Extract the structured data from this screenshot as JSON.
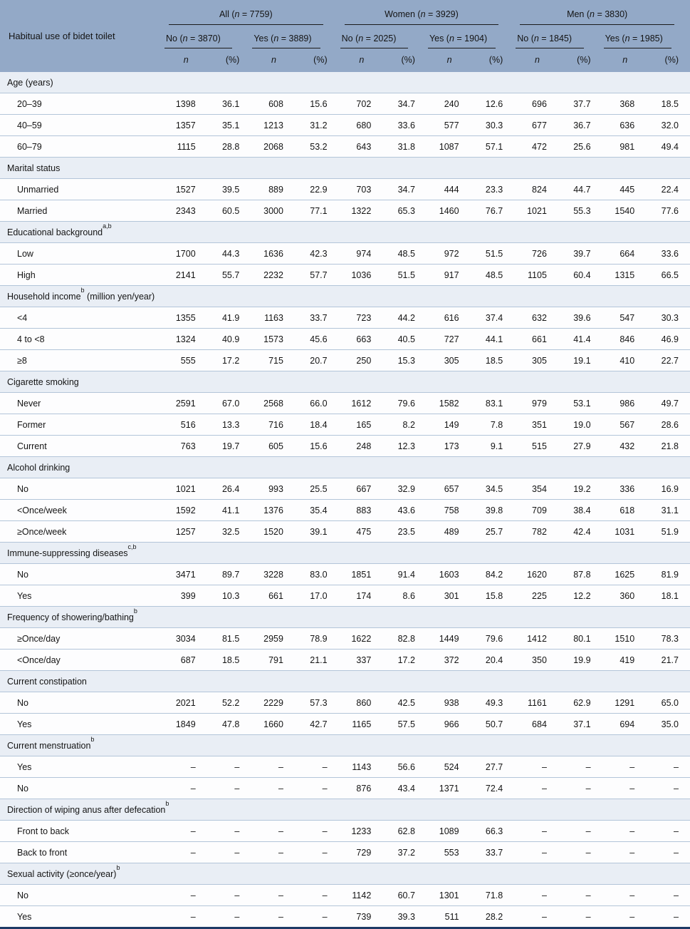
{
  "colors": {
    "header_bg": "#93a9c7",
    "section_bg": "#e9eef5",
    "row_bg": "#fdfdfe",
    "divider": "#b3c5d9",
    "bottom_border": "#1d3a66",
    "text": "#141414"
  },
  "table": {
    "row_header": "Habitual use of bidet toilet",
    "groups": [
      {
        "pre": "All (",
        "n": "n",
        "post": " = 7759)"
      },
      {
        "pre": "Women (",
        "n": "n",
        "post": " = 3929)"
      },
      {
        "pre": "Men (",
        "n": "n",
        "post": " = 3830)"
      }
    ],
    "subgroups": [
      {
        "pre": "No (",
        "n": "n",
        "post": " = 3870)"
      },
      {
        "pre": "Yes (",
        "n": "n",
        "post": " = 3889)"
      },
      {
        "pre": "No (",
        "n": "n",
        "post": " = 2025)"
      },
      {
        "pre": "Yes (",
        "n": "n",
        "post": " = 1904)"
      },
      {
        "pre": "No (",
        "n": "n",
        "post": " = 1845)"
      },
      {
        "pre": "Yes (",
        "n": "n",
        "post": " = 1985)"
      }
    ],
    "stat_cols": {
      "n": "n",
      "pct": "(%)"
    },
    "sections": [
      {
        "label": "Age (years)",
        "sup": "",
        "suffix": "",
        "rows": [
          {
            "label": "20–39",
            "v": [
              "1398",
              "36.1",
              "608",
              "15.6",
              "702",
              "34.7",
              "240",
              "12.6",
              "696",
              "37.7",
              "368",
              "18.5"
            ]
          },
          {
            "label": "40–59",
            "v": [
              "1357",
              "35.1",
              "1213",
              "31.2",
              "680",
              "33.6",
              "577",
              "30.3",
              "677",
              "36.7",
              "636",
              "32.0"
            ]
          },
          {
            "label": "60–79",
            "v": [
              "1115",
              "28.8",
              "2068",
              "53.2",
              "643",
              "31.8",
              "1087",
              "57.1",
              "472",
              "25.6",
              "981",
              "49.4"
            ]
          }
        ]
      },
      {
        "label": "Marital status",
        "sup": "",
        "suffix": "",
        "rows": [
          {
            "label": "Unmarried",
            "v": [
              "1527",
              "39.5",
              "889",
              "22.9",
              "703",
              "34.7",
              "444",
              "23.3",
              "824",
              "44.7",
              "445",
              "22.4"
            ]
          },
          {
            "label": "Married",
            "v": [
              "2343",
              "60.5",
              "3000",
              "77.1",
              "1322",
              "65.3",
              "1460",
              "76.7",
              "1021",
              "55.3",
              "1540",
              "77.6"
            ]
          }
        ]
      },
      {
        "label": "Educational background",
        "sup": "a,b",
        "suffix": "",
        "rows": [
          {
            "label": "Low",
            "v": [
              "1700",
              "44.3",
              "1636",
              "42.3",
              "974",
              "48.5",
              "972",
              "51.5",
              "726",
              "39.7",
              "664",
              "33.6"
            ]
          },
          {
            "label": "High",
            "v": [
              "2141",
              "55.7",
              "2232",
              "57.7",
              "1036",
              "51.5",
              "917",
              "48.5",
              "1105",
              "60.4",
              "1315",
              "66.5"
            ]
          }
        ]
      },
      {
        "label": "Household income",
        "sup": "b",
        "suffix": " (million yen/year)",
        "rows": [
          {
            "label": "<4",
            "v": [
              "1355",
              "41.9",
              "1163",
              "33.7",
              "723",
              "44.2",
              "616",
              "37.4",
              "632",
              "39.6",
              "547",
              "30.3"
            ]
          },
          {
            "label": "4 to <8",
            "v": [
              "1324",
              "40.9",
              "1573",
              "45.6",
              "663",
              "40.5",
              "727",
              "44.1",
              "661",
              "41.4",
              "846",
              "46.9"
            ]
          },
          {
            "label": "≥8",
            "v": [
              "555",
              "17.2",
              "715",
              "20.7",
              "250",
              "15.3",
              "305",
              "18.5",
              "305",
              "19.1",
              "410",
              "22.7"
            ]
          }
        ]
      },
      {
        "label": "Cigarette smoking",
        "sup": "",
        "suffix": "",
        "rows": [
          {
            "label": "Never",
            "v": [
              "2591",
              "67.0",
              "2568",
              "66.0",
              "1612",
              "79.6",
              "1582",
              "83.1",
              "979",
              "53.1",
              "986",
              "49.7"
            ]
          },
          {
            "label": "Former",
            "v": [
              "516",
              "13.3",
              "716",
              "18.4",
              "165",
              "8.2",
              "149",
              "7.8",
              "351",
              "19.0",
              "567",
              "28.6"
            ]
          },
          {
            "label": "Current",
            "v": [
              "763",
              "19.7",
              "605",
              "15.6",
              "248",
              "12.3",
              "173",
              "9.1",
              "515",
              "27.9",
              "432",
              "21.8"
            ]
          }
        ]
      },
      {
        "label": "Alcohol drinking",
        "sup": "",
        "suffix": "",
        "rows": [
          {
            "label": "No",
            "v": [
              "1021",
              "26.4",
              "993",
              "25.5",
              "667",
              "32.9",
              "657",
              "34.5",
              "354",
              "19.2",
              "336",
              "16.9"
            ]
          },
          {
            "label": "<Once/week",
            "v": [
              "1592",
              "41.1",
              "1376",
              "35.4",
              "883",
              "43.6",
              "758",
              "39.8",
              "709",
              "38.4",
              "618",
              "31.1"
            ]
          },
          {
            "label": "≥Once/week",
            "v": [
              "1257",
              "32.5",
              "1520",
              "39.1",
              "475",
              "23.5",
              "489",
              "25.7",
              "782",
              "42.4",
              "1031",
              "51.9"
            ]
          }
        ]
      },
      {
        "label": "Immune-suppressing diseases",
        "sup": "c,b",
        "suffix": "",
        "rows": [
          {
            "label": "No",
            "v": [
              "3471",
              "89.7",
              "3228",
              "83.0",
              "1851",
              "91.4",
              "1603",
              "84.2",
              "1620",
              "87.8",
              "1625",
              "81.9"
            ]
          },
          {
            "label": "Yes",
            "v": [
              "399",
              "10.3",
              "661",
              "17.0",
              "174",
              "8.6",
              "301",
              "15.8",
              "225",
              "12.2",
              "360",
              "18.1"
            ]
          }
        ]
      },
      {
        "label": "Frequency of showering/bathing",
        "sup": "b",
        "suffix": "",
        "rows": [
          {
            "label": "≥Once/day",
            "v": [
              "3034",
              "81.5",
              "2959",
              "78.9",
              "1622",
              "82.8",
              "1449",
              "79.6",
              "1412",
              "80.1",
              "1510",
              "78.3"
            ]
          },
          {
            "label": "<Once/day",
            "v": [
              "687",
              "18.5",
              "791",
              "21.1",
              "337",
              "17.2",
              "372",
              "20.4",
              "350",
              "19.9",
              "419",
              "21.7"
            ]
          }
        ]
      },
      {
        "label": "Current constipation",
        "sup": "",
        "suffix": "",
        "rows": [
          {
            "label": "No",
            "v": [
              "2021",
              "52.2",
              "2229",
              "57.3",
              "860",
              "42.5",
              "938",
              "49.3",
              "1161",
              "62.9",
              "1291",
              "65.0"
            ]
          },
          {
            "label": "Yes",
            "v": [
              "1849",
              "47.8",
              "1660",
              "42.7",
              "1165",
              "57.5",
              "966",
              "50.7",
              "684",
              "37.1",
              "694",
              "35.0"
            ]
          }
        ]
      },
      {
        "label": "Current menstruation",
        "sup": "b",
        "suffix": "",
        "rows": [
          {
            "label": "Yes",
            "v": [
              "–",
              "–",
              "–",
              "–",
              "1143",
              "56.6",
              "524",
              "27.7",
              "–",
              "–",
              "–",
              "–"
            ]
          },
          {
            "label": "No",
            "v": [
              "–",
              "–",
              "–",
              "–",
              "876",
              "43.4",
              "1371",
              "72.4",
              "–",
              "–",
              "–",
              "–"
            ]
          }
        ]
      },
      {
        "label": "Direction of wiping anus after defecation",
        "sup": "b",
        "suffix": "",
        "rows": [
          {
            "label": "Front to back",
            "v": [
              "–",
              "–",
              "–",
              "–",
              "1233",
              "62.8",
              "1089",
              "66.3",
              "–",
              "–",
              "–",
              "–"
            ]
          },
          {
            "label": "Back to front",
            "v": [
              "–",
              "–",
              "–",
              "–",
              "729",
              "37.2",
              "553",
              "33.7",
              "–",
              "–",
              "–",
              "–"
            ]
          }
        ]
      },
      {
        "label": "Sexual activity (≥once/year)",
        "sup": "b",
        "suffix": "",
        "rows": [
          {
            "label": "No",
            "v": [
              "–",
              "–",
              "–",
              "–",
              "1142",
              "60.7",
              "1301",
              "71.8",
              "–",
              "–",
              "–",
              "–"
            ]
          },
          {
            "label": "Yes",
            "v": [
              "–",
              "–",
              "–",
              "–",
              "739",
              "39.3",
              "511",
              "28.2",
              "–",
              "–",
              "–",
              "–"
            ]
          }
        ]
      }
    ]
  }
}
